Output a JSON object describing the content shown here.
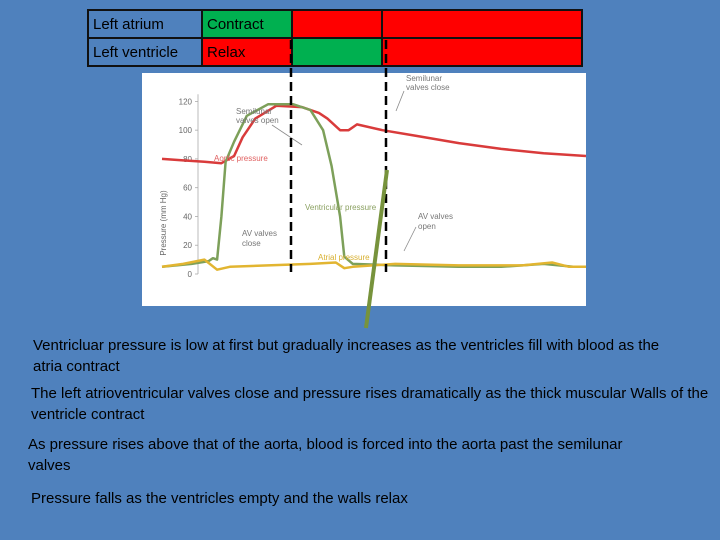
{
  "phase_table": {
    "rows": [
      {
        "label": "Left atrium",
        "phase": "Contract",
        "colors": [
          "#00b050",
          "#ff0000",
          "#ff0000"
        ]
      },
      {
        "label": "Left ventricle",
        "phase": "Relax",
        "colors": [
          "#ff0000",
          "#00b050",
          "#ff0000"
        ]
      }
    ]
  },
  "chart_data": {
    "type": "line",
    "ylabel": "Pressure (mm Hg)",
    "ylim": [
      0,
      130
    ],
    "yticks": [
      0,
      20,
      40,
      60,
      80,
      100,
      120
    ],
    "series": [
      {
        "name": "Aortic pressure",
        "color": "#d93b3b",
        "points": [
          [
            0,
            80
          ],
          [
            5,
            79
          ],
          [
            10,
            78
          ],
          [
            14,
            77
          ],
          [
            17,
            82
          ],
          [
            19,
            95
          ],
          [
            22,
            108
          ],
          [
            27,
            117
          ],
          [
            33,
            116
          ],
          [
            37,
            112
          ],
          [
            39,
            108
          ],
          [
            42,
            100
          ],
          [
            44,
            100
          ],
          [
            46,
            104
          ],
          [
            52,
            100
          ],
          [
            60,
            96
          ],
          [
            70,
            91
          ],
          [
            80,
            87
          ],
          [
            90,
            84
          ],
          [
            100,
            82
          ]
        ]
      },
      {
        "name": "Ventricular pressure",
        "color": "#7da05a",
        "points": [
          [
            0,
            5
          ],
          [
            7,
            7
          ],
          [
            11,
            9
          ],
          [
            12,
            11
          ],
          [
            13,
            10
          ],
          [
            14,
            40
          ],
          [
            15,
            78
          ],
          [
            17,
            92
          ],
          [
            20,
            110
          ],
          [
            25,
            118
          ],
          [
            31,
            118
          ],
          [
            35,
            114
          ],
          [
            38,
            100
          ],
          [
            40,
            75
          ],
          [
            42,
            40
          ],
          [
            43,
            12
          ],
          [
            45,
            7
          ],
          [
            55,
            6
          ],
          [
            70,
            5
          ],
          [
            80,
            5
          ],
          [
            90,
            7
          ],
          [
            97,
            5
          ],
          [
            100,
            5
          ]
        ]
      },
      {
        "name": "Atrial pressure",
        "color": "#e2b531",
        "points": [
          [
            0,
            5
          ],
          [
            5,
            7
          ],
          [
            10,
            10
          ],
          [
            13,
            3
          ],
          [
            16,
            5
          ],
          [
            25,
            6
          ],
          [
            35,
            7
          ],
          [
            41,
            8
          ],
          [
            43,
            4
          ],
          [
            45,
            5
          ],
          [
            55,
            7
          ],
          [
            70,
            6
          ],
          [
            85,
            6
          ],
          [
            92,
            8
          ],
          [
            96,
            5
          ],
          [
            100,
            5
          ]
        ]
      }
    ],
    "annotations": {
      "semilunar_open": [
        "Semilunar",
        "valves open"
      ],
      "semilunar_close": [
        "Semilunar",
        "valves close"
      ],
      "av_close": [
        "AV valves",
        "close"
      ],
      "av_open": [
        "AV valves",
        "open"
      ],
      "aortic": "Aortic pressure",
      "ventricular": "Ventricular pressure",
      "atrial": "Atrial pressure"
    }
  },
  "notes": [
    "Ventricluar pressure is low at first but gradually increases as the ventricles fill with blood as the atria contract",
    "The left atrioventricular valves close and pressure rises dramatically as the thick muscular Walls of the ventricle contract",
    "As pressure rises above that of the aorta, blood is forced into the aorta past the semilunar valves",
    "Pressure falls as the ventricles empty and the walls relax"
  ]
}
